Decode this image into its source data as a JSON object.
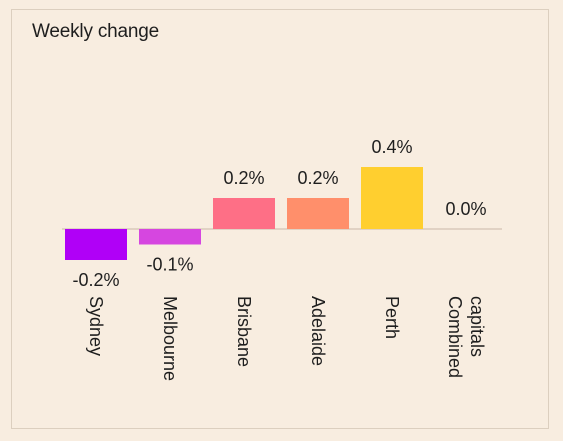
{
  "chart_data": {
    "type": "bar",
    "title": "Weekly change",
    "categories": [
      "Sydney",
      "Melbourne",
      "Brisbane",
      "Adelaide",
      "Perth",
      "Combined capitals"
    ],
    "category_lines": [
      [
        "Sydney"
      ],
      [
        "Melbourne"
      ],
      [
        "Brisbane"
      ],
      [
        "Adelaide"
      ],
      [
        "Perth"
      ],
      [
        "Combined",
        "capitals"
      ]
    ],
    "values": [
      -0.2,
      -0.1,
      0.2,
      0.2,
      0.4,
      0.0
    ],
    "value_labels": [
      "-0.2%",
      "-0.1%",
      "0.2%",
      "0.2%",
      "0.4%",
      "0.0%"
    ],
    "bar_colors": [
      "#b000f7",
      "#d646e0",
      "#fe6f86",
      "#ff8f6b",
      "#ffcf2f",
      "#f8ede0"
    ],
    "baseline_color": "#d9cabb",
    "xlabel": "",
    "ylabel": "",
    "grid": false,
    "legend": "none"
  }
}
